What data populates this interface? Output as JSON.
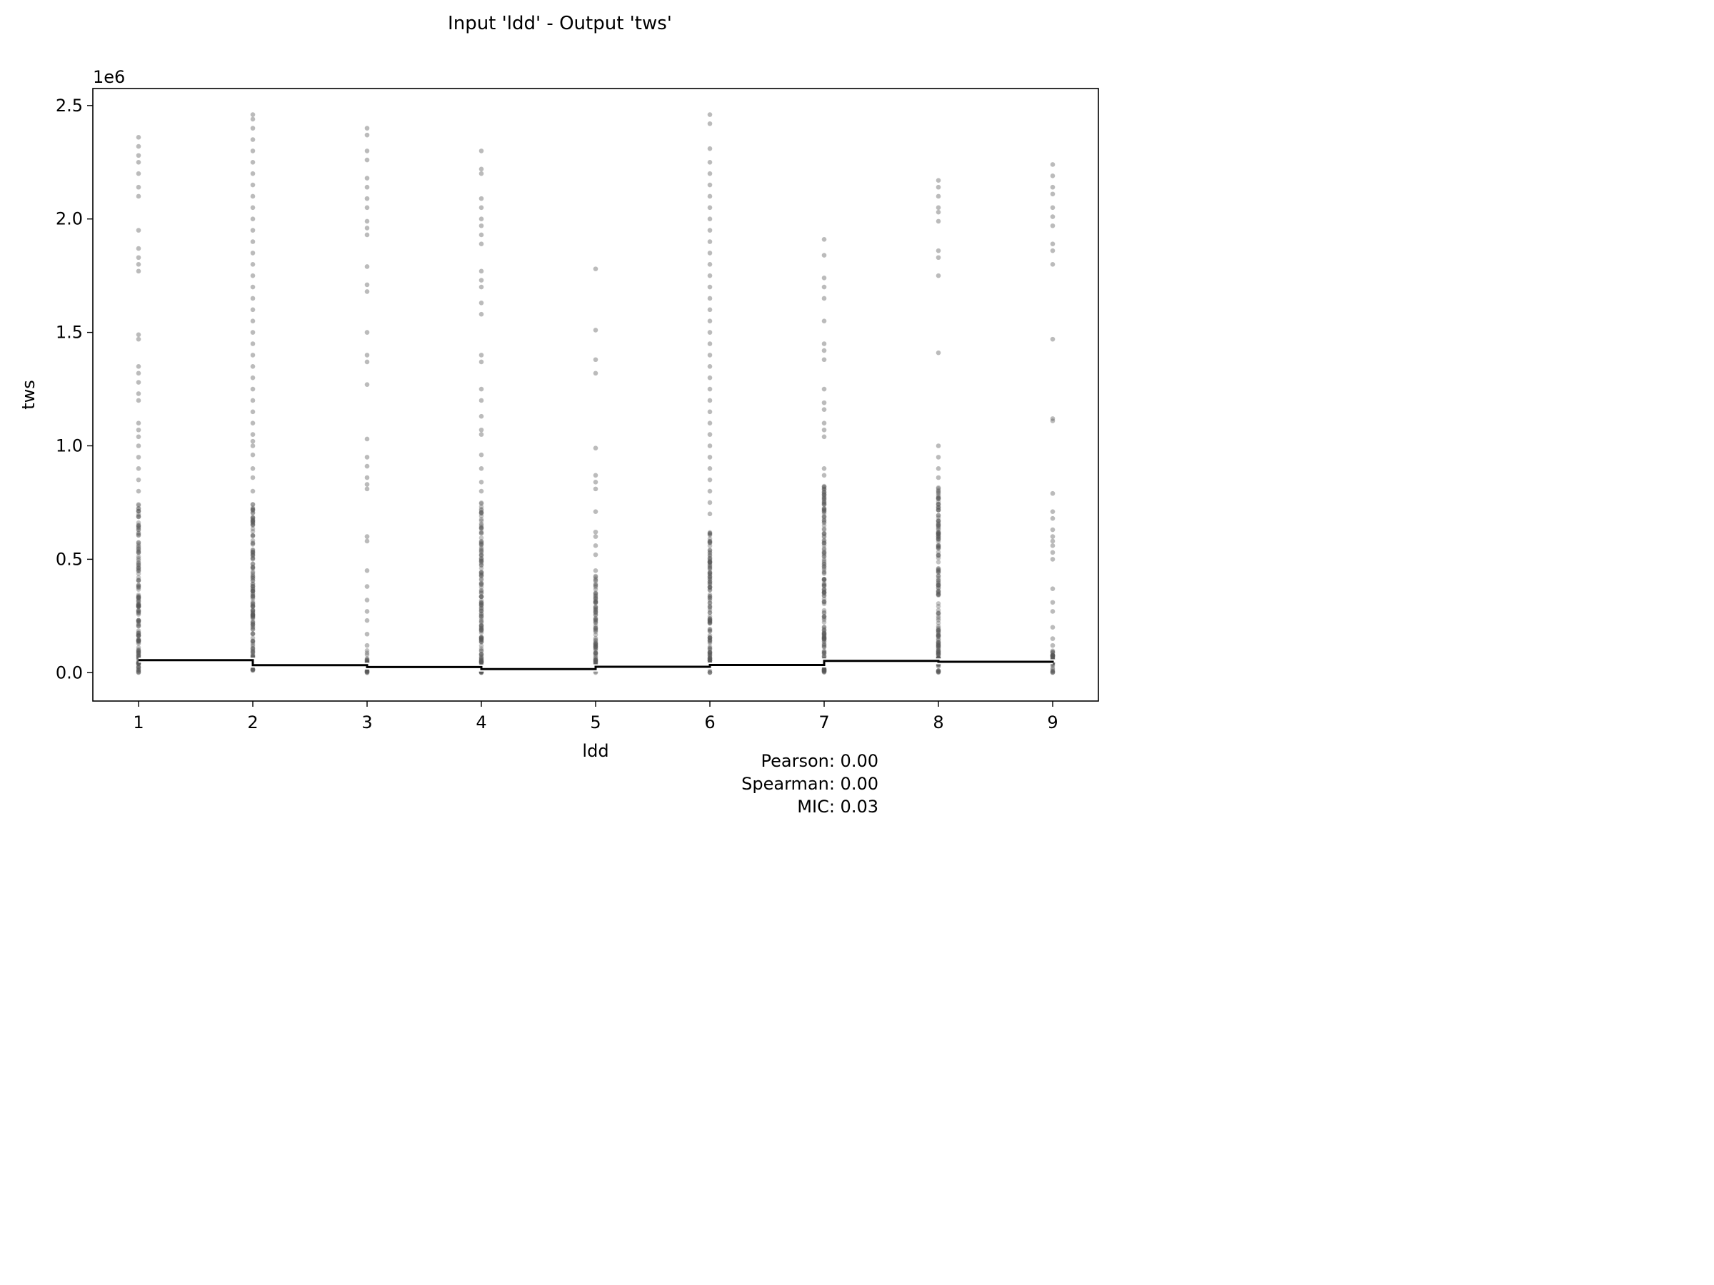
{
  "title": "Input 'ldd' - Output 'tws'",
  "chart_data": {
    "type": "scatter",
    "xlabel": "ldd",
    "ylabel": "tws",
    "y_offset_label": "1e6",
    "xlim": [
      0.6,
      9.4
    ],
    "ylim": [
      -0.125,
      2.575
    ],
    "x_ticks": [
      1,
      2,
      3,
      4,
      5,
      6,
      7,
      8,
      9
    ],
    "y_ticks": [
      0.0,
      0.5,
      1.0,
      1.5,
      2.0,
      2.5
    ],
    "y_tick_labels": [
      "0.0",
      "0.5",
      "1.0",
      "1.5",
      "2.0",
      "2.5"
    ],
    "grid": false,
    "point_color": "#555555",
    "columns": [
      {
        "x": 1,
        "dense_range": [
          0.0,
          0.75
        ],
        "max": 2.36,
        "sparse": [
          0.8,
          0.85,
          0.9,
          0.95,
          1.0,
          1.04,
          1.07,
          1.1,
          1.2,
          1.23,
          1.28,
          1.32,
          1.35,
          1.47,
          1.49,
          1.77,
          1.8,
          1.83,
          1.87,
          1.95,
          2.1,
          2.14,
          2.2,
          2.25,
          2.28,
          2.32,
          2.36
        ]
      },
      {
        "x": 2,
        "dense_range": [
          0.0,
          0.75
        ],
        "max": 2.46,
        "sparse": [
          0.8,
          0.86,
          0.9,
          0.96,
          1.0,
          1.02,
          1.05,
          1.1,
          1.15,
          1.2,
          1.25,
          1.3,
          1.35,
          1.4,
          1.45,
          1.5,
          1.55,
          1.6,
          1.65,
          1.7,
          1.75,
          1.8,
          1.85,
          1.9,
          1.95,
          2.0,
          2.05,
          2.1,
          2.15,
          2.2,
          2.25,
          2.3,
          2.35,
          2.4,
          2.44,
          2.46
        ]
      },
      {
        "x": 3,
        "dense_range": [
          0.0,
          0.1
        ],
        "max": 2.4,
        "sparse": [
          0.12,
          0.17,
          0.23,
          0.27,
          0.32,
          0.38,
          0.45,
          0.58,
          0.6,
          0.81,
          0.83,
          0.86,
          0.91,
          0.95,
          1.03,
          1.27,
          1.37,
          1.4,
          1.5,
          1.68,
          1.71,
          1.79,
          1.93,
          1.96,
          1.99,
          2.05,
          2.09,
          2.14,
          2.18,
          2.26,
          2.3,
          2.37,
          2.4
        ]
      },
      {
        "x": 4,
        "dense_range": [
          0.0,
          0.75
        ],
        "max": 2.3,
        "sparse": [
          0.8,
          0.84,
          0.9,
          0.96,
          1.05,
          1.07,
          1.13,
          1.2,
          1.25,
          1.37,
          1.4,
          1.58,
          1.63,
          1.7,
          1.73,
          1.77,
          1.89,
          1.93,
          1.97,
          2.0,
          2.05,
          2.09,
          2.2,
          2.22,
          2.3
        ]
      },
      {
        "x": 5,
        "dense_range": [
          0.0,
          0.43
        ],
        "max": 1.78,
        "sparse": [
          0.45,
          0.52,
          0.56,
          0.6,
          0.62,
          0.71,
          0.81,
          0.84,
          0.87,
          0.99,
          1.32,
          1.38,
          1.51,
          1.78
        ]
      },
      {
        "x": 6,
        "dense_range": [
          0.0,
          0.63
        ],
        "max": 2.46,
        "sparse": [
          0.7,
          0.75,
          0.8,
          0.85,
          0.9,
          0.95,
          1.0,
          1.05,
          1.1,
          1.15,
          1.2,
          1.25,
          1.3,
          1.35,
          1.4,
          1.45,
          1.5,
          1.55,
          1.6,
          1.65,
          1.7,
          1.75,
          1.8,
          1.85,
          1.9,
          1.95,
          2.0,
          2.05,
          2.1,
          2.15,
          2.2,
          2.25,
          2.31,
          2.42,
          2.46
        ]
      },
      {
        "x": 7,
        "dense_range": [
          0.0,
          0.83
        ],
        "max": 1.91,
        "sparse": [
          0.87,
          0.9,
          1.04,
          1.07,
          1.1,
          1.16,
          1.19,
          1.25,
          1.38,
          1.42,
          1.45,
          1.55,
          1.65,
          1.7,
          1.74,
          1.84,
          1.91
        ]
      },
      {
        "x": 8,
        "dense_range": [
          0.0,
          0.83
        ],
        "max": 2.17,
        "sparse": [
          0.86,
          0.9,
          0.95,
          1.0,
          1.41,
          1.75,
          1.83,
          1.86,
          1.99,
          2.03,
          2.05,
          2.1,
          2.14,
          2.17
        ]
      },
      {
        "x": 9,
        "dense_range": [
          0.0,
          0.1
        ],
        "max": 2.24,
        "sparse": [
          0.12,
          0.15,
          0.2,
          0.27,
          0.31,
          0.37,
          0.5,
          0.53,
          0.56,
          0.58,
          0.6,
          0.63,
          0.68,
          0.71,
          0.79,
          1.11,
          1.12,
          1.47,
          1.8,
          1.86,
          1.89,
          1.97,
          2.01,
          2.05,
          2.11,
          2.14,
          2.19,
          2.24
        ]
      }
    ],
    "line_series": {
      "x": [
        1,
        2,
        3,
        4,
        5,
        6,
        7,
        8,
        9
      ],
      "y": [
        0.055,
        0.033,
        0.025,
        0.016,
        0.026,
        0.034,
        0.052,
        0.048,
        0.045
      ],
      "color": "#000000"
    },
    "annotations": [
      "Pearson: 0.00",
      "Spearman: 0.00",
      "MIC: 0.03"
    ]
  }
}
